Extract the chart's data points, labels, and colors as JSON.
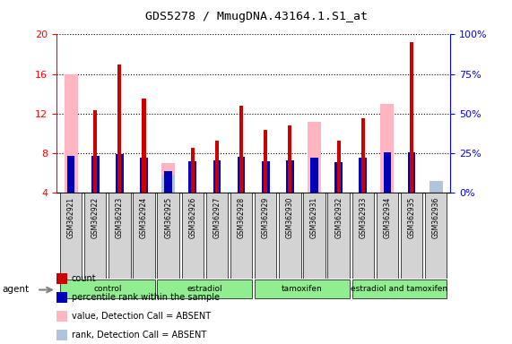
{
  "title": "GDS5278 / MmugDNA.43164.1.S1_at",
  "samples": [
    "GSM362921",
    "GSM362922",
    "GSM362923",
    "GSM362924",
    "GSM362925",
    "GSM362926",
    "GSM362927",
    "GSM362928",
    "GSM362929",
    "GSM362930",
    "GSM362931",
    "GSM362932",
    "GSM362933",
    "GSM362934",
    "GSM362935",
    "GSM362936"
  ],
  "groups": [
    {
      "label": "control",
      "start": 0,
      "end": 4
    },
    {
      "label": "estradiol",
      "start": 4,
      "end": 8
    },
    {
      "label": "tamoxifen",
      "start": 8,
      "end": 12
    },
    {
      "label": "estradiol and tamoxifen",
      "start": 12,
      "end": 16
    }
  ],
  "count_values": [
    null,
    12.3,
    17.0,
    13.5,
    null,
    8.5,
    9.3,
    12.8,
    10.3,
    10.8,
    null,
    9.3,
    11.5,
    null,
    19.2,
    null
  ],
  "rank_values": [
    7.7,
    7.7,
    7.9,
    7.5,
    6.2,
    7.2,
    7.3,
    7.6,
    7.2,
    7.3,
    7.5,
    7.1,
    7.5,
    8.1,
    8.1,
    null
  ],
  "absent_value_values": [
    16.0,
    null,
    null,
    null,
    7.0,
    null,
    null,
    null,
    null,
    null,
    11.2,
    null,
    null,
    13.0,
    null,
    4.5
  ],
  "absent_rank_values": [
    null,
    null,
    null,
    null,
    5.8,
    null,
    null,
    null,
    null,
    null,
    null,
    null,
    null,
    null,
    null,
    5.2
  ],
  "ylim": [
    4,
    20
  ],
  "y_ticks": [
    4,
    8,
    12,
    16,
    20
  ],
  "right_yticks": [
    0,
    25,
    50,
    75,
    100
  ],
  "right_ylim": [
    0,
    100
  ],
  "count_color": "#CC0000",
  "rank_color": "#0000BB",
  "absent_value_color": "#FFB6C1",
  "absent_rank_color": "#B0C4DE",
  "group_color": "#90EE90",
  "group_bg_color": "#C8E6C9"
}
